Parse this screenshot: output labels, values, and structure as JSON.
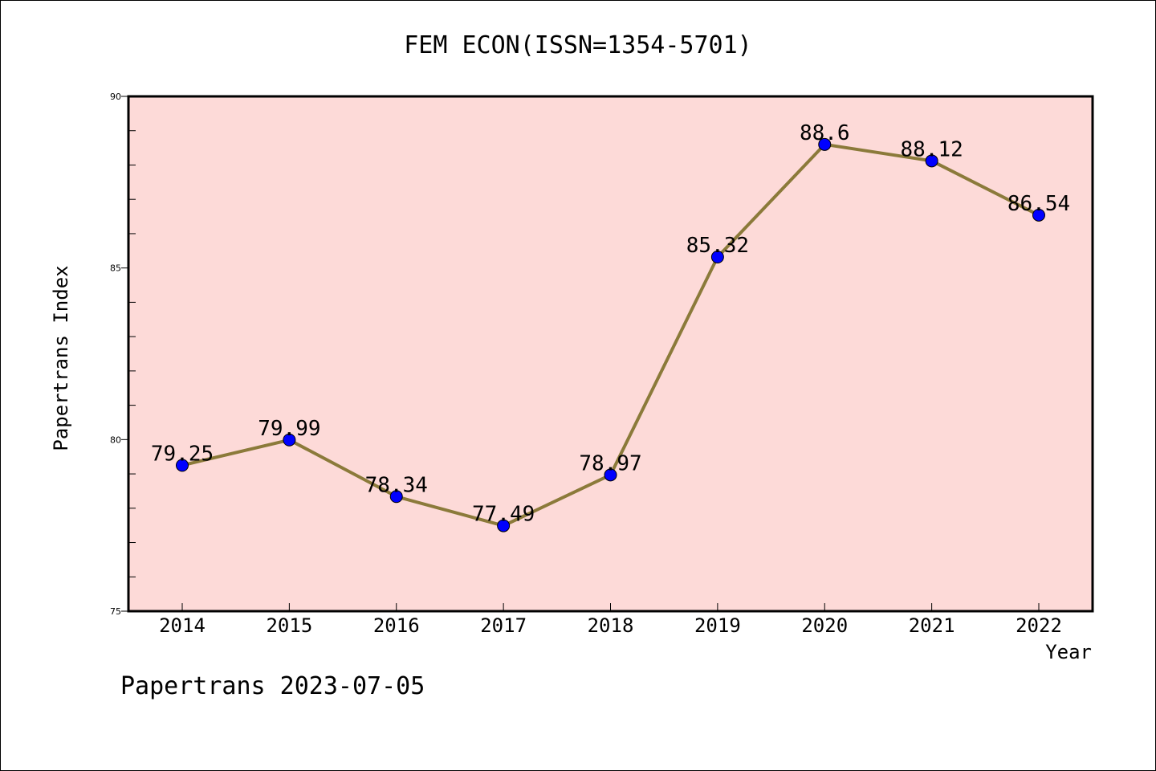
{
  "chart_data": {
    "type": "line",
    "title": "FEM ECON(ISSN=1354-5701)",
    "xlabel": "Year",
    "ylabel": "Papertrans Index",
    "categories": [
      "2014",
      "2015",
      "2016",
      "2017",
      "2018",
      "2019",
      "2020",
      "2021",
      "2022"
    ],
    "series": [
      {
        "values": [
          79.25,
          79.99,
          78.34,
          77.49,
          78.97,
          85.32,
          88.6,
          88.12,
          86.54
        ],
        "labels": [
          "79.25",
          "79.99",
          "78.34",
          "77.49",
          "78.97",
          "85.32",
          "88.6",
          "88.12",
          "86.54"
        ],
        "line_color": "#8b7a3a",
        "marker_color": "#0000ff"
      }
    ],
    "ylim": [
      75,
      90
    ],
    "y_ticks": [
      75,
      80,
      85,
      90
    ],
    "y_tick_labels": [
      "75",
      "80",
      "85",
      "90"
    ],
    "y_minor_step": 1,
    "grid": false,
    "plot_background": "#fddad8",
    "footer": "Papertrans 2023-07-05"
  }
}
